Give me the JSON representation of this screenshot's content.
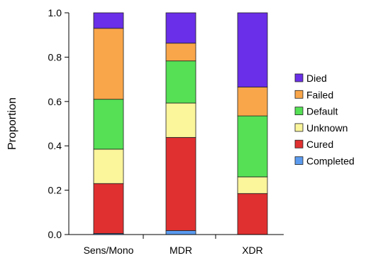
{
  "chart_data": {
    "type": "bar",
    "stacked": true,
    "title": "",
    "xlabel": "",
    "ylabel": "Proportion",
    "ylim": [
      0,
      1.0
    ],
    "yticks": [
      "0.0",
      "0.2",
      "0.4",
      "0.6",
      "0.8",
      "1.0"
    ],
    "categories": [
      "Sens/Mono",
      "MDR",
      "XDR"
    ],
    "grid": false,
    "legend_position": "right",
    "series": [
      {
        "name": "Completed",
        "color": "#5b9bef",
        "values": [
          0.005,
          0.018,
          0.0
        ]
      },
      {
        "name": "Cured",
        "color": "#e03030",
        "values": [
          0.225,
          0.42,
          0.185
        ]
      },
      {
        "name": "Unknown",
        "color": "#fbf59b",
        "values": [
          0.155,
          0.155,
          0.075
        ]
      },
      {
        "name": "Default",
        "color": "#55e055",
        "values": [
          0.225,
          0.19,
          0.275
        ]
      },
      {
        "name": "Failed",
        "color": "#f9a64a",
        "values": [
          0.32,
          0.08,
          0.13
        ]
      },
      {
        "name": "Died",
        "color": "#6a2fe8",
        "values": [
          0.07,
          0.137,
          0.335
        ]
      }
    ]
  }
}
